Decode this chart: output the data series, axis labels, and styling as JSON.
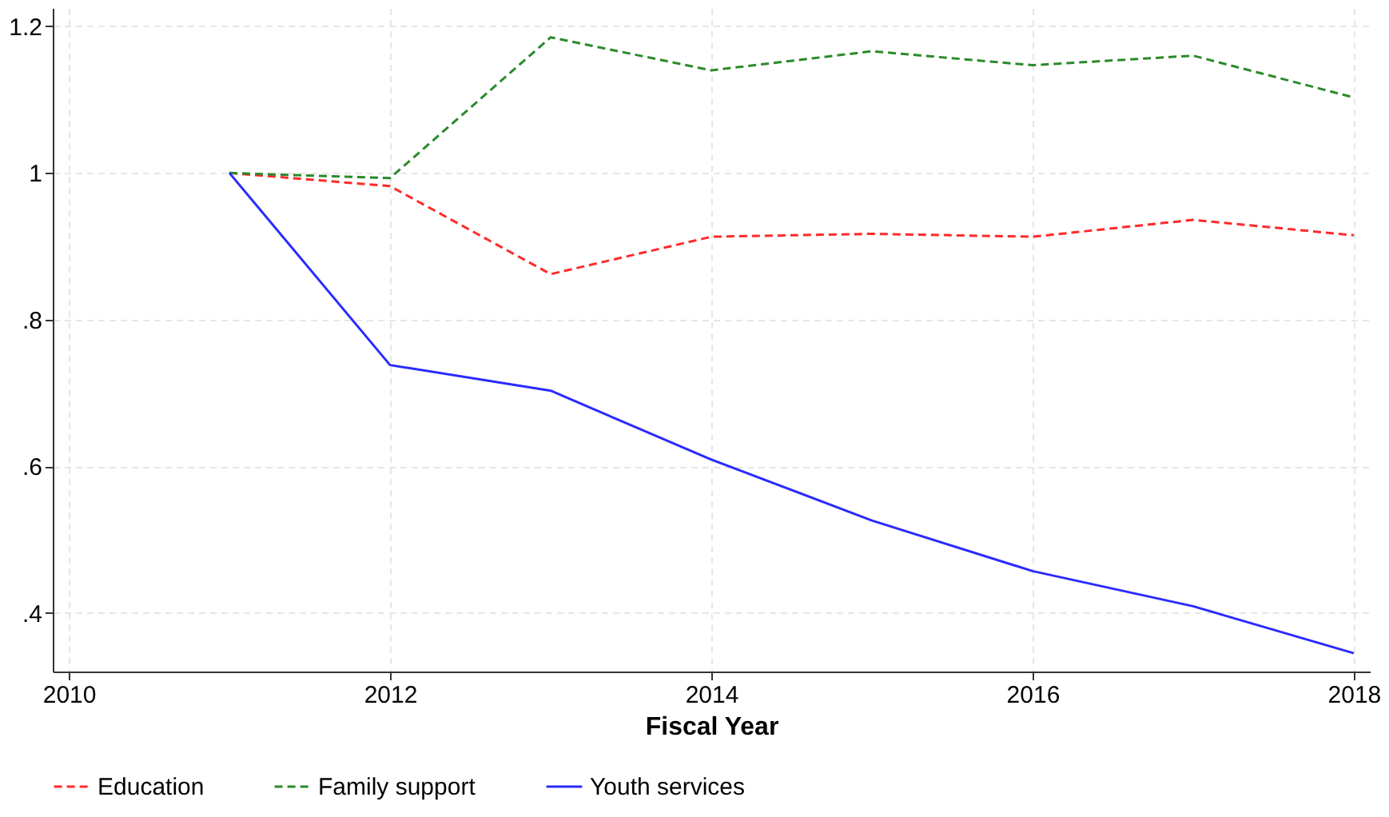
{
  "chart_data": {
    "type": "line",
    "xlabel": "Fiscal Year",
    "x": [
      2011,
      2012,
      2013,
      2014,
      2015,
      2016,
      2017,
      2018
    ],
    "series": [
      {
        "name": "Education",
        "color": "#ff2a2a",
        "line_style": "dashed",
        "values": [
          1,
          0.982,
          0.862,
          0.913,
          0.917,
          0.913,
          0.936,
          0.915
        ]
      },
      {
        "name": "Family support",
        "color": "#2a8a2a",
        "line_style": "dashed",
        "values": [
          1,
          0.993,
          1.185,
          1.14,
          1.166,
          1.147,
          1.16,
          1.103
        ]
      },
      {
        "name": "Youth services",
        "color": "#2a2aff",
        "line_style": "solid",
        "values": [
          1,
          0.738,
          0.703,
          0.609,
          0.526,
          0.457,
          0.409,
          0.345
        ]
      }
    ],
    "xlim": [
      2009.9,
      2018.1
    ],
    "xticks": [
      2010,
      2012,
      2014,
      2016,
      2018
    ],
    "ylim": [
      0.32,
      1.225
    ],
    "yticks": [
      {
        "value": 0.4,
        "label": ".4"
      },
      {
        "value": 0.6,
        "label": ".6"
      },
      {
        "value": 0.8,
        "label": ".8"
      },
      1,
      1.2
    ],
    "grid": true,
    "legend": "bottom",
    "marker": "none"
  }
}
